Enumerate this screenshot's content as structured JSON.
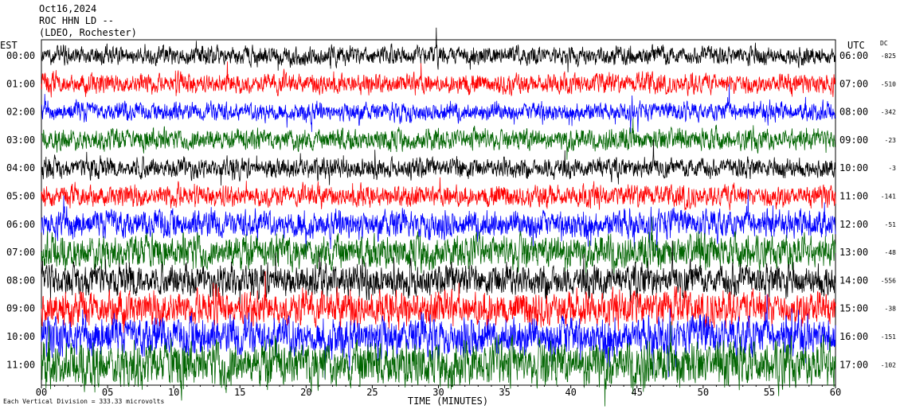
{
  "header": {
    "date": "Oct16,2024",
    "station": "ROC HHN LD --",
    "network": "(LDEO, Rochester)"
  },
  "left_axis_title": "EST",
  "right_axis_title": "UTC",
  "dc_title": "DC",
  "footer_note": "Each Vertical Division = 333.33 microvolts",
  "chart_data": {
    "type": "line",
    "title": "",
    "xlabel": "TIME (MINUTES)",
    "xlim": [
      0,
      60
    ],
    "x_ticks": [
      "00",
      "05",
      "10",
      "15",
      "20",
      "25",
      "30",
      "35",
      "40",
      "45",
      "50",
      "55",
      "60"
    ],
    "grid": false,
    "series_colors_cycle": [
      "#000000",
      "#ff0000",
      "#0000ff",
      "#006400"
    ],
    "series": [
      {
        "est": "00:00",
        "utc": "06:00",
        "dc": "-825",
        "color": "#000000",
        "amplitude": 0.28
      },
      {
        "est": "01:00",
        "utc": "07:00",
        "dc": "-510",
        "color": "#ff0000",
        "amplitude": 0.3
      },
      {
        "est": "02:00",
        "utc": "08:00",
        "dc": "-342",
        "color": "#0000ff",
        "amplitude": 0.28
      },
      {
        "est": "03:00",
        "utc": "09:00",
        "dc": "-23",
        "color": "#006400",
        "amplitude": 0.32
      },
      {
        "est": "04:00",
        "utc": "10:00",
        "dc": "-3",
        "color": "#000000",
        "amplitude": 0.3
      },
      {
        "est": "05:00",
        "utc": "11:00",
        "dc": "-141",
        "color": "#ff0000",
        "amplitude": 0.32
      },
      {
        "est": "06:00",
        "utc": "12:00",
        "dc": "-51",
        "color": "#0000ff",
        "amplitude": 0.42
      },
      {
        "est": "07:00",
        "utc": "13:00",
        "dc": "-48",
        "color": "#006400",
        "amplitude": 0.5
      },
      {
        "est": "08:00",
        "utc": "14:00",
        "dc": "-556",
        "color": "#000000",
        "amplitude": 0.48
      },
      {
        "est": "09:00",
        "utc": "15:00",
        "dc": "-38",
        "color": "#ff0000",
        "amplitude": 0.52
      },
      {
        "est": "10:00",
        "utc": "16:00",
        "dc": "-151",
        "color": "#0000ff",
        "amplitude": 0.58
      },
      {
        "est": "11:00",
        "utc": "17:00",
        "dc": "-102",
        "color": "#006400",
        "amplitude": 0.68
      }
    ]
  }
}
